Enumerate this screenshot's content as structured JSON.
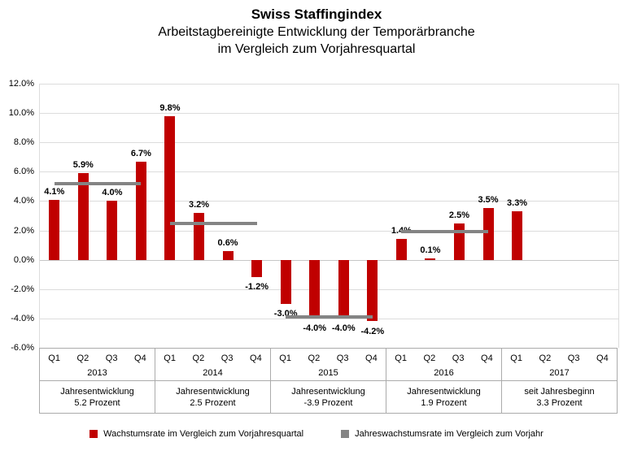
{
  "title": "Swiss Staffingindex",
  "subtitle_line1": "Arbeitstagbereinigte Entwicklung der Temporärbranche",
  "subtitle_line2": "im Vergleich zum Vorjahresquartal",
  "colors": {
    "bar": "#c00000",
    "annual_line": "#848484",
    "gridline": "#dcdcdc",
    "zero_line": "#c6c6c6",
    "table_border": "#ababab",
    "text": "#000000"
  },
  "chart_data": {
    "type": "bar",
    "title": "Swiss Staffingindex",
    "subtitle": "Arbeitstagbereinigte Entwicklung der Temporärbranche im Vergleich zum Vorjahresquartal",
    "ylim": [
      -6,
      12
    ],
    "y_tick_step": 2,
    "y_tick_labels": [
      "12.0%",
      "10.0%",
      "8.0%",
      "6.0%",
      "4.0%",
      "2.0%",
      "0.0%",
      "-2.0%",
      "-4.0%",
      "-6.0%"
    ],
    "grid": true,
    "legend_position": "bottom",
    "groups": [
      {
        "year": "2013",
        "quarters": [
          "Q1",
          "Q2",
          "Q3",
          "Q4"
        ],
        "values": [
          4.1,
          5.9,
          4.0,
          6.7
        ],
        "value_labels": [
          "4.1%",
          "5.9%",
          "4.0%",
          "6.7%"
        ],
        "annual_value": 5.2,
        "summary_line1": "Jahresentwicklung",
        "summary_line2": "5.2 Prozent"
      },
      {
        "year": "2014",
        "quarters": [
          "Q1",
          "Q2",
          "Q3",
          "Q4"
        ],
        "values": [
          9.8,
          3.2,
          0.6,
          -1.2
        ],
        "value_labels": [
          "9.8%",
          "3.2%",
          "0.6%",
          "-1.2%"
        ],
        "annual_value": 2.5,
        "summary_line1": "Jahresentwicklung",
        "summary_line2": "2.5 Prozent"
      },
      {
        "year": "2015",
        "quarters": [
          "Q1",
          "Q2",
          "Q3",
          "Q4"
        ],
        "values": [
          -3.0,
          -4.0,
          -4.0,
          -4.2
        ],
        "value_labels": [
          "-3.0%",
          "-4.0%",
          "-4.0%",
          "-4.2%"
        ],
        "annual_value": -3.9,
        "summary_line1": "Jahresentwicklung",
        "summary_line2": "-3.9 Prozent"
      },
      {
        "year": "2016",
        "quarters": [
          "Q1",
          "Q2",
          "Q3",
          "Q4"
        ],
        "values": [
          1.4,
          0.1,
          2.5,
          3.5
        ],
        "value_labels": [
          "1.4%",
          "0.1%",
          "2.5%",
          "3.5%"
        ],
        "annual_value": 1.9,
        "summary_line1": "Jahresentwicklung",
        "summary_line2": "1.9 Prozent"
      },
      {
        "year": "2017",
        "quarters": [
          "Q1",
          "Q2",
          "Q3",
          "Q4"
        ],
        "values": [
          3.3,
          null,
          null,
          null
        ],
        "value_labels": [
          "3.3%",
          "",
          "",
          ""
        ],
        "annual_value": null,
        "summary_line1": "seit Jahresbeginn",
        "summary_line2": "3.3 Prozent"
      }
    ],
    "legend": [
      {
        "label": "Wachstumsrate im Vergleich zum Vorjahresquartal",
        "color": "#c00000"
      },
      {
        "label": "Jahreswachstumsrate im Vergleich zum Vorjahr",
        "color": "#848484"
      }
    ]
  }
}
